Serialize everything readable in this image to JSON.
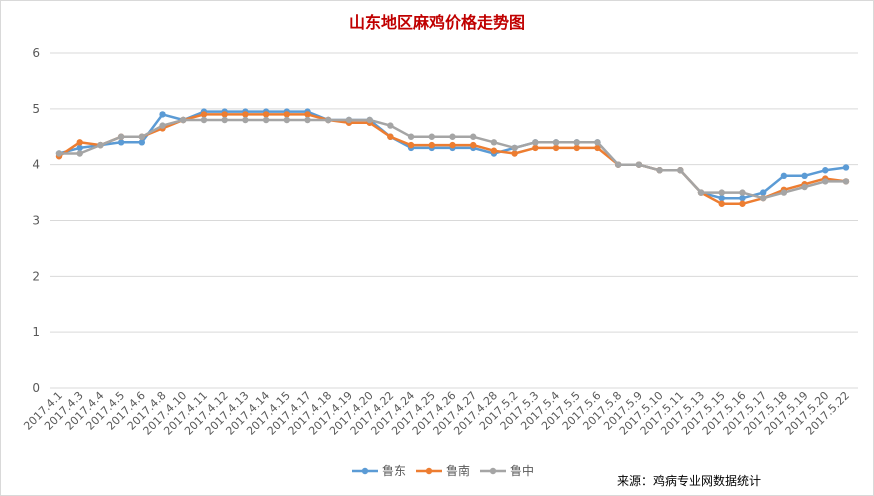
{
  "chart_data": {
    "type": "line",
    "title": "山东地区麻鸡价格走势图",
    "source": "来源：鸡病专业网数据统计",
    "xlabel": "",
    "ylabel": "",
    "ylim": [
      0,
      6
    ],
    "yticks": [
      "0",
      "1",
      "2",
      "3",
      "4",
      "5",
      "6"
    ],
    "grid": true,
    "legend_position": "bottom",
    "categories": [
      "2017.4.1",
      "2017.4.3",
      "2017.4.4",
      "2017.4.5",
      "2017.4.6",
      "2017.4.8",
      "2017.4.10",
      "2017.4.11",
      "2017.4.12",
      "2017.4.13",
      "2017.4.14",
      "2017.4.15",
      "2017.4.17",
      "2017.4.18",
      "2017.4.19",
      "2017.4.20",
      "2017.4.22",
      "2017.4.24",
      "2017.4.25",
      "2017.4.26",
      "2017.4.27",
      "2017.4.28",
      "2017.5.2",
      "2017.5.3",
      "2017.5.4",
      "2017.5.5",
      "2017.5.6",
      "2017.5.8",
      "2017.5.9",
      "2017.5.10",
      "2017.5.11",
      "2017.5.13",
      "2017.5.15",
      "2017.5.16",
      "2017.5.17",
      "2017.5.18",
      "2017.5.19",
      "2017.5.20",
      "2017.5.22"
    ],
    "series": [
      {
        "name": "鲁东",
        "color": "#5b9bd5",
        "values": [
          4.2,
          4.3,
          4.35,
          4.4,
          4.4,
          4.9,
          4.8,
          4.95,
          4.95,
          4.95,
          4.95,
          4.95,
          4.95,
          4.8,
          4.8,
          4.8,
          4.5,
          4.3,
          4.3,
          4.3,
          4.3,
          4.2,
          4.3,
          4.4,
          4.4,
          4.4,
          4.4,
          4.0,
          4.0,
          3.9,
          3.9,
          3.5,
          3.4,
          3.4,
          3.5,
          3.8,
          3.8,
          3.9,
          3.95
        ]
      },
      {
        "name": "鲁南",
        "color": "#ed7d31",
        "values": [
          4.15,
          4.4,
          4.35,
          4.5,
          4.5,
          4.65,
          4.8,
          4.9,
          4.9,
          4.9,
          4.9,
          4.9,
          4.9,
          4.8,
          4.75,
          4.75,
          4.5,
          4.35,
          4.35,
          4.35,
          4.35,
          4.25,
          4.2,
          4.3,
          4.3,
          4.3,
          4.3,
          4.0,
          4.0,
          3.9,
          3.9,
          3.5,
          3.3,
          3.3,
          3.4,
          3.55,
          3.65,
          3.75,
          3.7
        ]
      },
      {
        "name": "鲁中",
        "color": "#a5a5a5",
        "values": [
          4.2,
          4.2,
          4.35,
          4.5,
          4.5,
          4.7,
          4.8,
          4.8,
          4.8,
          4.8,
          4.8,
          4.8,
          4.8,
          4.8,
          4.8,
          4.8,
          4.7,
          4.5,
          4.5,
          4.5,
          4.5,
          4.4,
          4.3,
          4.4,
          4.4,
          4.4,
          4.4,
          4.0,
          4.0,
          3.9,
          3.9,
          3.5,
          3.5,
          3.5,
          3.4,
          3.5,
          3.6,
          3.7,
          3.7
        ]
      }
    ]
  }
}
